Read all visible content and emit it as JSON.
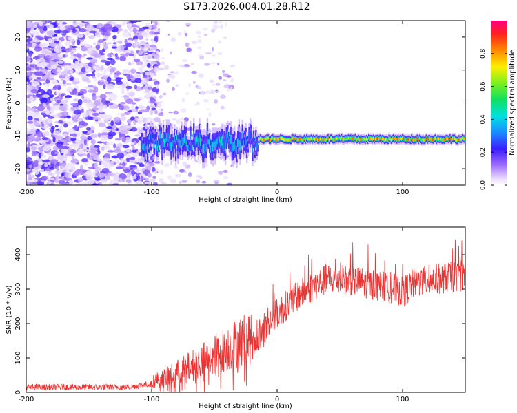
{
  "title": "S173.2026.004.01.28.R12",
  "chart_data": [
    {
      "type": "heatmap",
      "name": "spectrogram",
      "xlabel": "Height of straight line (km)",
      "ylabel": "Frequency (Hz)",
      "xlim": [
        -200,
        150
      ],
      "ylim": [
        -25,
        25
      ],
      "xticks": [
        -200,
        -100,
        0,
        100
      ],
      "xtick_labels": [
        "-200",
        "-100",
        "0",
        "100"
      ],
      "yticks": [
        -20,
        -10,
        0,
        10,
        20
      ],
      "ytick_labels": [
        "-20",
        "-10",
        "0",
        "10",
        "20"
      ],
      "colorbar": {
        "label": "Normalized spectral amplitude",
        "range": [
          0,
          1
        ],
        "ticks": [
          0.0,
          0.2,
          0.4,
          0.6,
          0.8
        ],
        "tick_labels": [
          "0.0",
          "0.2",
          "0.4",
          "0.6",
          "0.8"
        ]
      },
      "description_band": {
        "center_freq_hz": -11,
        "onset_km": -105,
        "stable_from_km": -15
      }
    },
    {
      "type": "line",
      "name": "snr",
      "xlabel": "Height of straight line (km)",
      "ylabel": "SNR (10 * v/v)",
      "xlim": [
        -200,
        150
      ],
      "ylim": [
        0,
        480
      ],
      "xticks": [
        -200,
        -100,
        0,
        100
      ],
      "xtick_labels": [
        "-200",
        "-100",
        "0",
        "100"
      ],
      "yticks": [
        0,
        100,
        200,
        300,
        400
      ],
      "ytick_labels": [
        "0",
        "100",
        "200",
        "300",
        "400"
      ],
      "color": "#ee3333",
      "trend_x": [
        -200,
        -120,
        -90,
        -60,
        -40,
        -20,
        0,
        20,
        40,
        60,
        80,
        95,
        100,
        110,
        130,
        150
      ],
      "trend_y": [
        15,
        15,
        30,
        70,
        100,
        130,
        230,
        290,
        330,
        325,
        310,
        300,
        290,
        320,
        330,
        340
      ]
    }
  ]
}
